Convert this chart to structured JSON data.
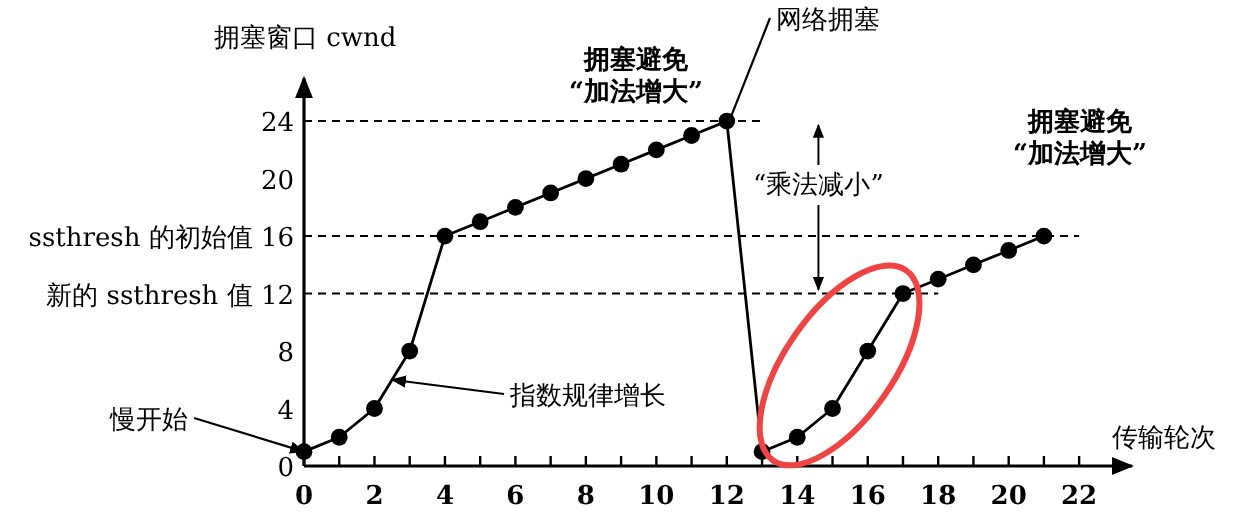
{
  "chart_data": {
    "type": "line",
    "xlabel": "传输轮次",
    "ylabel": "拥塞窗口 cwnd",
    "x": [
      0,
      1,
      2,
      3,
      4,
      5,
      6,
      7,
      8,
      9,
      10,
      11,
      12,
      13,
      14,
      15,
      16,
      17,
      18,
      19,
      20,
      21
    ],
    "series": [
      {
        "color": "#000000",
        "values": [
          1,
          2,
          4,
          8,
          16,
          17,
          18,
          19,
          20,
          21,
          22,
          23,
          24,
          1,
          2,
          4,
          8,
          12,
          13,
          14,
          15,
          16
        ]
      }
    ],
    "xlim": [
      0,
      23.5
    ],
    "ylim": [
      0,
      27
    ],
    "xticks": [
      0,
      {
        "value": 1,
        "label": null
      },
      2,
      {
        "value": 3,
        "label": null
      },
      4,
      {
        "value": 5,
        "label": null
      },
      6,
      {
        "value": 7,
        "label": null
      },
      8,
      {
        "value": 9,
        "label": null
      },
      10,
      {
        "value": 11,
        "label": null
      },
      12,
      {
        "value": 13,
        "label": null
      },
      14,
      {
        "value": 15,
        "label": null
      },
      16,
      {
        "value": 17,
        "label": null
      },
      18,
      {
        "value": 19,
        "label": null
      },
      20,
      {
        "value": 21,
        "label": null
      },
      22
    ],
    "yticks": [
      0,
      4,
      8,
      {
        "value": 12,
        "label": "新的 ssthresh 值 12"
      },
      {
        "value": 16,
        "label": "ssthresh 的初始值 16"
      },
      20,
      24
    ],
    "ref_lines": [
      {
        "axis": "y",
        "value": 24,
        "line_style": "dashed"
      },
      {
        "axis": "y",
        "value": 16,
        "line_style": "dashed"
      },
      {
        "axis": "y",
        "value": 12,
        "line_style": "dashed"
      }
    ],
    "annotations": [
      "拥塞避免 “加法增大”",
      {
        "text": "网络拥塞",
        "x": 12,
        "y": 24
      },
      {
        "text": "“乘法减小”",
        "x": 14.6,
        "y": 12
      },
      "拥塞避免 “加法增大”",
      {
        "text": "指数规律增长",
        "x": 2.5,
        "y": 6
      },
      {
        "text": "慢开始",
        "x": 0,
        "y": 1
      }
    ],
    "marker": "circle",
    "line_style": "solid"
  }
}
